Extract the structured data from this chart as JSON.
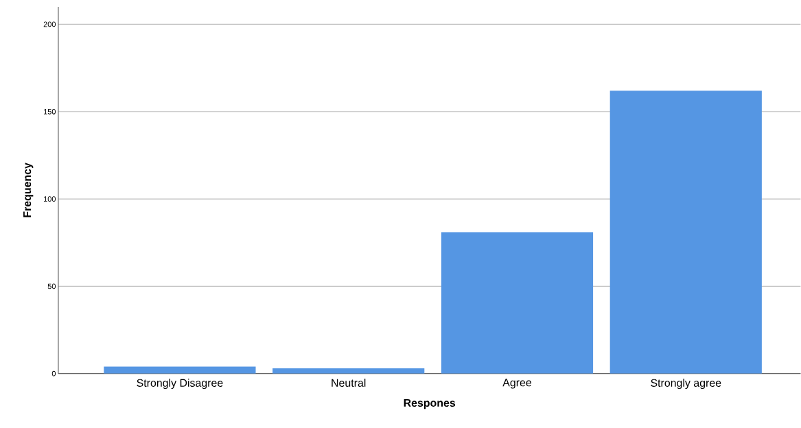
{
  "chart_data": {
    "type": "bar",
    "xlabel": "Respones",
    "ylabel": "Frequency",
    "categories": [
      "Strongly Disagree",
      "Neutral",
      "Agree",
      "Strongly agree"
    ],
    "values": [
      4,
      3,
      81,
      162
    ],
    "color": "#5596e3",
    "ylim": [
      0,
      210
    ],
    "yticks": [
      0,
      50,
      100,
      150,
      200
    ],
    "grid": "y"
  }
}
